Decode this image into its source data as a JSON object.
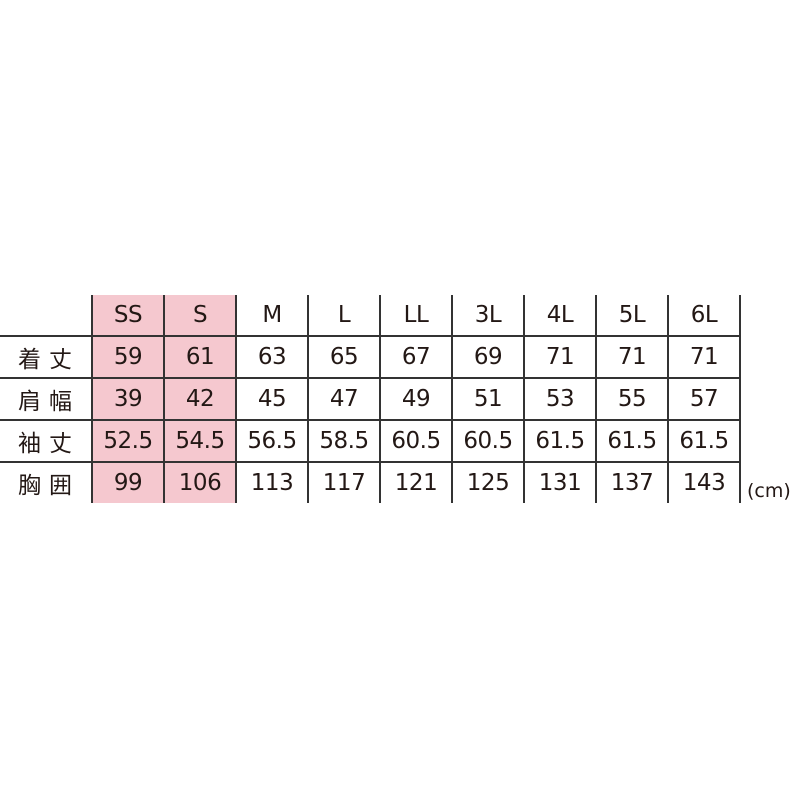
{
  "table": {
    "headers": [
      "SS",
      "S",
      "M",
      "L",
      "LL",
      "3L",
      "4L",
      "5L",
      "6L"
    ],
    "highlight_color": "#f5c8cf",
    "highlighted_columns": [
      "SS",
      "S"
    ],
    "rows": [
      {
        "label": "着丈",
        "values": [
          "59",
          "61",
          "63",
          "65",
          "67",
          "69",
          "71",
          "71",
          "71"
        ]
      },
      {
        "label": "肩幅",
        "values": [
          "39",
          "42",
          "45",
          "47",
          "49",
          "51",
          "53",
          "55",
          "57"
        ]
      },
      {
        "label": "袖丈",
        "values": [
          "52.5",
          "54.5",
          "56.5",
          "58.5",
          "60.5",
          "60.5",
          "61.5",
          "61.5",
          "61.5"
        ]
      },
      {
        "label": "胸囲",
        "values": [
          "99",
          "106",
          "113",
          "117",
          "121",
          "125",
          "131",
          "137",
          "143"
        ]
      }
    ]
  },
  "unit": "(cm)"
}
